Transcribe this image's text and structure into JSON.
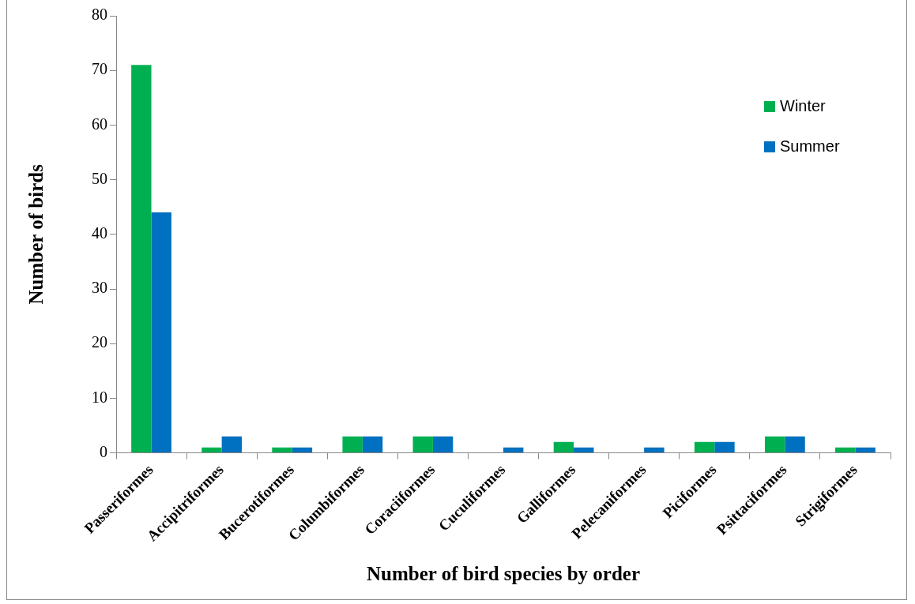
{
  "chart_data": {
    "type": "bar",
    "xlabel": "Number of bird species by order",
    "ylabel": "Number of birds",
    "categories": [
      "Passeriformes",
      "Accipitriformes",
      "Bucerotiformes",
      "Columbiformes",
      "Coraciiformes",
      "Cuculiformes",
      "Galliformes",
      "Pelecaniformes",
      "Piciformes",
      "Psittaciformes",
      "Strigiformes"
    ],
    "series": [
      {
        "name": "Winter",
        "color": "#00b050",
        "values": [
          71,
          1,
          1,
          3,
          3,
          0,
          2,
          0,
          2,
          3,
          1
        ]
      },
      {
        "name": "Summer",
        "color": "#0070c0",
        "values": [
          44,
          3,
          1,
          3,
          3,
          1,
          1,
          1,
          2,
          3,
          1
        ]
      }
    ],
    "ylim": [
      0,
      80
    ],
    "yticks": [
      0,
      10,
      20,
      30,
      40,
      50,
      60,
      70,
      80
    ],
    "grid": false,
    "legend": "top right"
  }
}
